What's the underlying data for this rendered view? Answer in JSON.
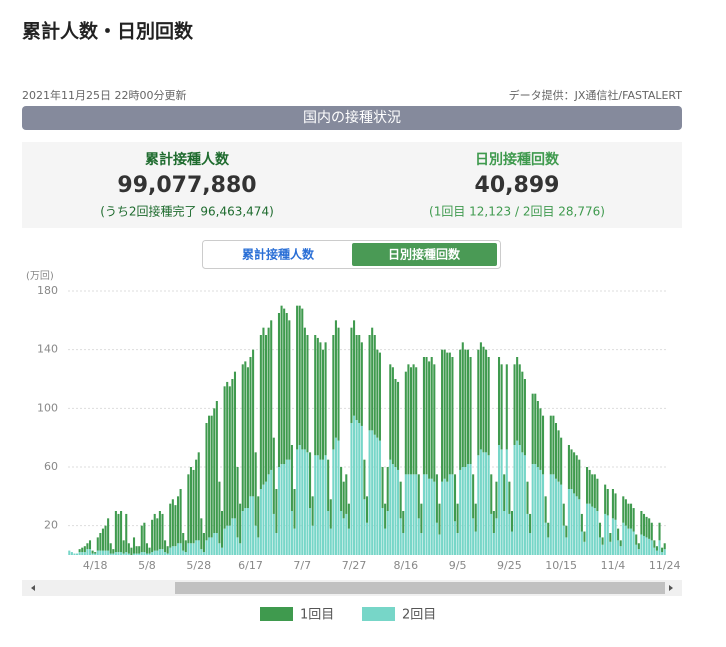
{
  "header": {
    "title": "累計人数・日別回数",
    "updated": "2021年11月25日 22時00分更新",
    "source": "データ提供：JX通信社/FASTALERT",
    "banner": "国内の接種状況"
  },
  "stats": {
    "left": {
      "label": "累計接種人数",
      "value": "99,077,880",
      "note": "(うち2回接種完了 96,463,474)"
    },
    "right": {
      "label": "日別接種回数",
      "value": "40,899",
      "note": "(1回目 12,123 / 2回目 28,776)"
    }
  },
  "tabs": [
    "累計接種人数",
    "日別接種回数"
  ],
  "chart_data": {
    "type": "stacked_bar",
    "y_label": "(万回)",
    "categories": [
      null,
      null,
      null,
      null,
      null,
      null,
      null,
      null,
      null,
      null,
      "4/18",
      null,
      null,
      null,
      null,
      null,
      null,
      null,
      null,
      null,
      null,
      null,
      null,
      null,
      null,
      null,
      null,
      null,
      null,
      null,
      "5/8",
      null,
      null,
      null,
      null,
      null,
      null,
      null,
      null,
      null,
      null,
      null,
      null,
      null,
      null,
      null,
      null,
      null,
      null,
      null,
      "5/28",
      null,
      null,
      null,
      null,
      null,
      null,
      null,
      null,
      null,
      null,
      null,
      null,
      null,
      null,
      null,
      null,
      null,
      null,
      null,
      "6/17",
      null,
      null,
      null,
      null,
      null,
      null,
      null,
      null,
      null,
      null,
      null,
      null,
      null,
      null,
      null,
      null,
      null,
      null,
      null,
      "7/7",
      null,
      null,
      null,
      null,
      null,
      null,
      null,
      null,
      null,
      null,
      null,
      null,
      null,
      null,
      null,
      null,
      null,
      null,
      null,
      "7/27",
      null,
      null,
      null,
      null,
      null,
      null,
      null,
      null,
      null,
      null,
      null,
      null,
      null,
      null,
      null,
      null,
      null,
      null,
      null,
      "8/16",
      null,
      null,
      null,
      null,
      null,
      null,
      null,
      null,
      null,
      null,
      null,
      null,
      null,
      null,
      null,
      null,
      null,
      null,
      null,
      "9/5",
      null,
      null,
      null,
      null,
      null,
      null,
      null,
      null,
      null,
      null,
      null,
      null,
      null,
      null,
      null,
      null,
      null,
      null,
      null,
      "9/25",
      null,
      null,
      null,
      null,
      null,
      null,
      null,
      null,
      null,
      null,
      null,
      null,
      null,
      null,
      null,
      null,
      null,
      null,
      null,
      "10/15",
      null,
      null,
      null,
      null,
      null,
      null,
      null,
      null,
      null,
      null,
      null,
      null,
      null,
      null,
      null,
      null,
      null,
      null,
      null,
      "11/4",
      null,
      null,
      null,
      null,
      null,
      null,
      null,
      null,
      null,
      null,
      null,
      null,
      null,
      null,
      null,
      null,
      null,
      null,
      null,
      "11/24"
    ],
    "series": [
      {
        "name": "1回目",
        "color": "#3f9a4e",
        "values": [
          0,
          0,
          0,
          0,
          2,
          3,
          4,
          4,
          6,
          2,
          1,
          9,
          12,
          15,
          17,
          22,
          7,
          3,
          28,
          26,
          28,
          9,
          26,
          7,
          5,
          11,
          5,
          5,
          18,
          20,
          7,
          4,
          22,
          25,
          22,
          26,
          24,
          8,
          5,
          30,
          32,
          28,
          32,
          37,
          12,
          8,
          47,
          52,
          50,
          55,
          60,
          21,
          13,
          80,
          83,
          83,
          85,
          90,
          42,
          25,
          97,
          98,
          95,
          95,
          100,
          48,
          27,
          100,
          100,
          96,
          95,
          100,
          50,
          28,
          105,
          107,
          100,
          100,
          102,
          52,
          30,
          105,
          108,
          106,
          100,
          95,
          45,
          27,
          98,
          95,
          96,
          83,
          80,
          38,
          20,
          82,
          80,
          80,
          75,
          77,
          35,
          20,
          78,
          80,
          77,
          30,
          25,
          27,
          17,
          65,
          65,
          58,
          60,
          57,
          27,
          18,
          65,
          70,
          68,
          60,
          60,
          28,
          17,
          30,
          65,
          66,
          60,
          60,
          25,
          15,
          70,
          75,
          73,
          75,
          73,
          30,
          20,
          80,
          80,
          80,
          83,
          80,
          33,
          21,
          90,
          88,
          88,
          83,
          80,
          32,
          20,
          82,
          85,
          80,
          78,
          73,
          30,
          19,
          72,
          73,
          72,
          70,
          67,
          27,
          15,
          25,
          60,
          58,
          25,
          58,
          22,
          14,
          55,
          57,
          55,
          55,
          52,
          22,
          13,
          48,
          48,
          45,
          42,
          40,
          18,
          10,
          40,
          40,
          38,
          35,
          32,
          15,
          8,
          30,
          27,
          28,
          28,
          27,
          12,
          7,
          25,
          23,
          22,
          23,
          22,
          10,
          5,
          20,
          18,
          6,
          20,
          18,
          8,
          4,
          18,
          18,
          17,
          17,
          16,
          7,
          4,
          16,
          15,
          14,
          14,
          12,
          5,
          3,
          12,
          3,
          4
        ]
      },
      {
        "name": "2回目",
        "color": "#77d6c8",
        "values": [
          3,
          2,
          1,
          1,
          2,
          2,
          2,
          4,
          4,
          1,
          1,
          3,
          3,
          3,
          3,
          3,
          1,
          1,
          2,
          2,
          2,
          1,
          2,
          1,
          0,
          1,
          1,
          1,
          2,
          2,
          1,
          1,
          2,
          3,
          3,
          4,
          4,
          2,
          1,
          5,
          6,
          6,
          8,
          8,
          3,
          2,
          8,
          8,
          8,
          10,
          10,
          4,
          2,
          10,
          12,
          12,
          15,
          15,
          8,
          5,
          18,
          20,
          20,
          25,
          25,
          12,
          8,
          30,
          32,
          32,
          40,
          40,
          20,
          12,
          45,
          48,
          50,
          55,
          58,
          28,
          15,
          60,
          62,
          62,
          65,
          65,
          30,
          18,
          72,
          75,
          72,
          72,
          70,
          32,
          20,
          68,
          68,
          65,
          65,
          68,
          30,
          18,
          72,
          80,
          78,
          30,
          25,
          28,
          18,
          90,
          95,
          92,
          90,
          88,
          38,
          22,
          85,
          85,
          82,
          80,
          78,
          32,
          18,
          30,
          65,
          62,
          60,
          58,
          25,
          15,
          55,
          55,
          55,
          55,
          55,
          25,
          15,
          55,
          55,
          52,
          52,
          50,
          22,
          14,
          50,
          52,
          50,
          55,
          55,
          23,
          15,
          58,
          60,
          60,
          62,
          62,
          25,
          16,
          68,
          72,
          70,
          70,
          68,
          28,
          15,
          25,
          75,
          72,
          30,
          72,
          28,
          16,
          75,
          78,
          75,
          70,
          68,
          28,
          15,
          62,
          62,
          60,
          58,
          55,
          22,
          12,
          55,
          55,
          52,
          50,
          48,
          20,
          12,
          45,
          45,
          42,
          40,
          38,
          16,
          9,
          35,
          35,
          33,
          32,
          30,
          12,
          7,
          28,
          27,
          9,
          25,
          24,
          10,
          6,
          22,
          20,
          18,
          18,
          16,
          7,
          4,
          14,
          13,
          12,
          11,
          10,
          5,
          3,
          10,
          2,
          4
        ]
      }
    ],
    "ylim": [
      0,
      180
    ],
    "yticks": [
      20,
      60,
      100,
      140,
      180
    ],
    "grid": true,
    "legend": "bottom"
  }
}
